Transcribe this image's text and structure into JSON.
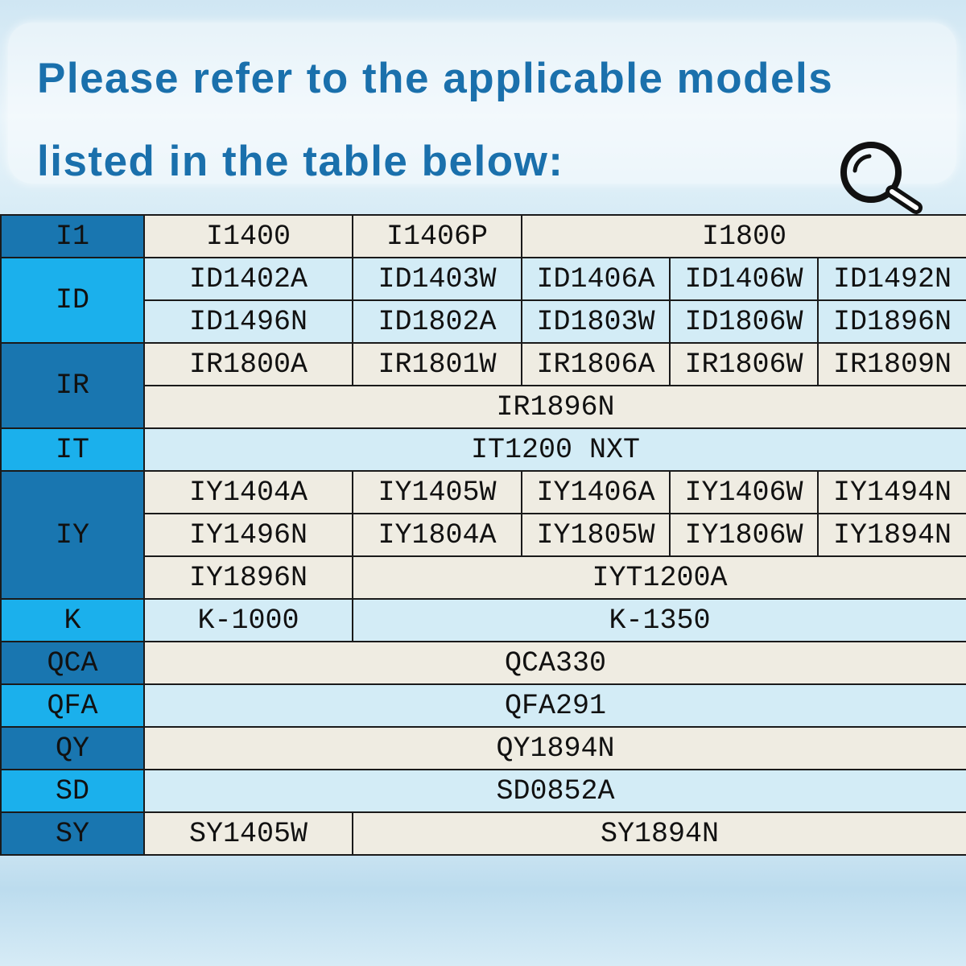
{
  "header": {
    "title": "Please refer to the applicable models listed in the table below:",
    "icon": "magnifier-icon"
  },
  "colors": {
    "label_dark": "#1976b0",
    "label_light": "#1bb0ec",
    "row_beige": "#efece2",
    "row_blue": "#d3ecf6",
    "title": "#1a70ac"
  },
  "table": {
    "I1": {
      "label": "I1",
      "models": [
        "I1400",
        "I1406P",
        "I1800"
      ]
    },
    "ID": {
      "label": "ID",
      "models": [
        "ID1402A",
        "ID1403W",
        "ID1406A",
        "ID1406W",
        "ID1492N",
        "ID1496N",
        "ID1802A",
        "ID1803W",
        "ID1806W",
        "ID1896N"
      ]
    },
    "IR": {
      "label": "IR",
      "models": [
        "IR1800A",
        "IR1801W",
        "IR1806A",
        "IR1806W",
        "IR1809N",
        "IR1896N"
      ]
    },
    "IT": {
      "label": "IT",
      "models": [
        "IT1200 NXT"
      ]
    },
    "IY": {
      "label": "IY",
      "models": [
        "IY1404A",
        "IY1405W",
        "IY1406A",
        "IY1406W",
        "IY1494N",
        "IY1496N",
        "IY1804A",
        "IY1805W",
        "IY1806W",
        "IY1894N",
        "IY1896N",
        "IYT1200A"
      ]
    },
    "K": {
      "label": "K",
      "models": [
        "K-1000",
        "K-1350"
      ]
    },
    "QCA": {
      "label": "QCA",
      "models": [
        "QCA330"
      ]
    },
    "QFA": {
      "label": "QFA",
      "models": [
        "QFA291"
      ]
    },
    "QY": {
      "label": "QY",
      "models": [
        "QY1894N"
      ]
    },
    "SD": {
      "label": "SD",
      "models": [
        "SD0852A"
      ]
    },
    "SY": {
      "label": "SY",
      "models": [
        "SY1405W",
        "SY1894N"
      ]
    }
  }
}
